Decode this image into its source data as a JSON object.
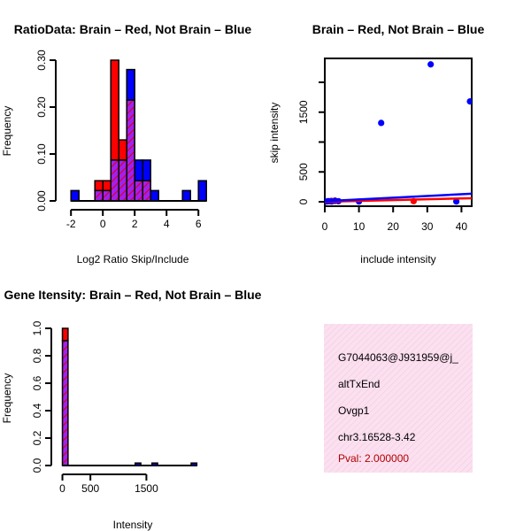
{
  "colors": {
    "red": "#ff0000",
    "blue": "#0000ff",
    "purple": "#a020f0",
    "hatch_red": "#dd0000",
    "pink_bg": "#fbe0f0",
    "pval": "#b00000"
  },
  "chart_data": [
    {
      "id": "ratio",
      "type": "bar",
      "title": "RatioData: Brain – Red, Not Brain – Blue",
      "xlabel": "Log2 Ratio Skip/Include",
      "ylabel": "Frequency",
      "xlim": [
        -2.4,
        6.6
      ],
      "ylim": [
        0,
        0.3
      ],
      "xticks": [
        -2,
        0,
        2,
        4,
        6
      ],
      "yticks": [
        0.0,
        0.1,
        0.2,
        0.3
      ],
      "ytick_labels": [
        "0.00",
        "0.10",
        "0.20",
        "0.30"
      ],
      "bin_edges": [
        -2,
        -1.5,
        -1,
        -0.5,
        0,
        0.5,
        1,
        1.5,
        2,
        2.5,
        3,
        3.5,
        4,
        4.5,
        5,
        5.5,
        6,
        6.5
      ],
      "series": [
        {
          "name": "Brain",
          "color": "red",
          "values": [
            0,
            0,
            0,
            0.043,
            0.043,
            0.3,
            0.13,
            0.215,
            0.043,
            0.043,
            0,
            0,
            0,
            0,
            0,
            0,
            0
          ]
        },
        {
          "name": "Not Brain",
          "color": "blue",
          "values": [
            0.022,
            0,
            0,
            0.022,
            0.022,
            0.087,
            0.087,
            0.28,
            0.087,
            0.087,
            0.022,
            0,
            0,
            0,
            0.022,
            0,
            0.043
          ]
        }
      ]
    },
    {
      "id": "scatter",
      "type": "scatter",
      "title": "Brain – Red, Not Brain – Blue",
      "xlabel": "include intensity",
      "ylabel": "skip intensity",
      "xlim": [
        0,
        43
      ],
      "ylim": [
        0,
        2400
      ],
      "xticks": [
        0,
        10,
        20,
        30,
        40
      ],
      "yticks": [
        0,
        500,
        1500
      ],
      "series": [
        {
          "name": "Brain",
          "color": "red",
          "points": [
            [
              1,
              10
            ],
            [
              2,
              15
            ],
            [
              3,
              20
            ],
            [
              26,
              10
            ]
          ],
          "fit": [
            [
              0,
              0
            ],
            [
              43,
              60
            ]
          ]
        },
        {
          "name": "Not Brain",
          "color": "blue",
          "points": [
            [
              0.5,
              5
            ],
            [
              1,
              10
            ],
            [
              1.5,
              10
            ],
            [
              2,
              5
            ],
            [
              3,
              15
            ],
            [
              4,
              10
            ],
            [
              10,
              5
            ],
            [
              16.5,
              1320
            ],
            [
              31,
              2300
            ],
            [
              38.5,
              5
            ],
            [
              42.5,
              1680
            ]
          ],
          "fit": [
            [
              0,
              10
            ],
            [
              43,
              135
            ]
          ]
        }
      ]
    },
    {
      "id": "intensity",
      "type": "bar",
      "title": "Gene Itensity: Brain – Red, Not Brain – Blue",
      "xlabel": "Intensity",
      "ylabel": "Frequency",
      "xlim": [
        -40,
        2600
      ],
      "ylim": [
        0,
        1.0
      ],
      "xticks": [
        0,
        500,
        1500
      ],
      "yticks": [
        0.0,
        0.2,
        0.4,
        0.6,
        0.8,
        1.0
      ],
      "ytick_labels": [
        "0.0",
        "0.2",
        "0.4",
        "0.6",
        "0.8",
        "1.0"
      ],
      "bin_edges": [
        0,
        100,
        200,
        300,
        400,
        500,
        600,
        700,
        800,
        900,
        1000,
        1100,
        1200,
        1300,
        1400,
        1500,
        1600,
        1700,
        1800,
        1900,
        2000,
        2100,
        2200,
        2300,
        2400
      ],
      "series": [
        {
          "name": "Brain",
          "color": "red",
          "values": [
            1.0,
            0,
            0,
            0,
            0,
            0,
            0,
            0,
            0,
            0,
            0,
            0,
            0,
            0,
            0,
            0,
            0,
            0,
            0,
            0,
            0,
            0,
            0,
            0
          ]
        },
        {
          "name": "Not Brain",
          "color": "blue",
          "values": [
            0.91,
            0,
            0,
            0,
            0,
            0,
            0,
            0,
            0,
            0,
            0,
            0,
            0,
            0.018,
            0,
            0,
            0.018,
            0,
            0,
            0,
            0,
            0,
            0,
            0.018
          ]
        }
      ]
    }
  ],
  "info": {
    "id": "G7044063@J931959@j_",
    "event": "altTxEnd",
    "gene": "Ovgp1",
    "location": "chr3.16528-3.42",
    "pval": "Pval: 2.000000"
  }
}
